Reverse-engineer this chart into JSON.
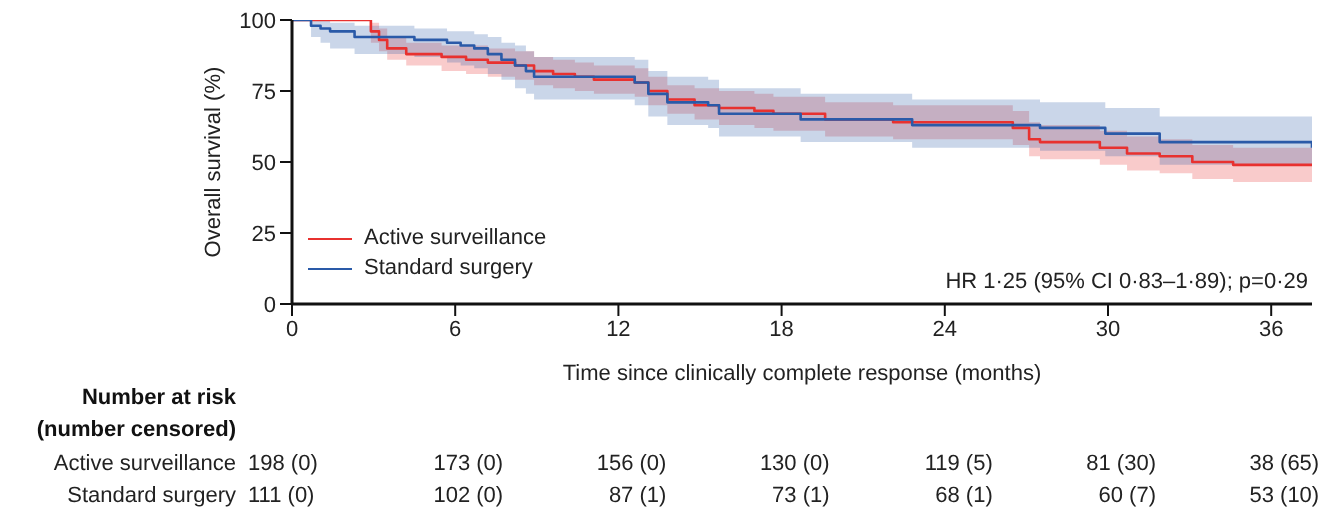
{
  "chart_data": {
    "type": "step",
    "xlabel": "Time since clinically complete response (months)",
    "ylabel": "Overall survival (%)",
    "xlim": [
      0,
      37.5
    ],
    "xticks": [
      0,
      6,
      12,
      18,
      24,
      30,
      36
    ],
    "ylim": [
      0,
      100
    ],
    "yticks": [
      0,
      25,
      50,
      75,
      100
    ],
    "legend": "bottom left",
    "line_style": "solid",
    "series": [
      {
        "name": "Active surveillance",
        "color": "#e8312f",
        "x": [
          0,
          2.9,
          3.2,
          3.5,
          4.2,
          5.5,
          6.4,
          7.2,
          8.2,
          8.9,
          9.6,
          10.4,
          11.1,
          12.6,
          13.1,
          13.8,
          14.8,
          15.7,
          17.0,
          17.7,
          19.6,
          22.1,
          26.5,
          27.1,
          27.5,
          29.7,
          30.7,
          31.9,
          33.1,
          34.6,
          37.5
        ],
        "values": [
          100,
          96,
          93,
          90,
          88,
          87,
          86,
          85,
          84,
          82,
          81,
          80,
          79,
          78,
          75,
          72,
          70,
          69,
          68,
          67,
          65,
          64,
          62,
          58,
          57,
          55,
          53,
          52,
          50,
          49,
          49
        ],
        "lower": [
          100,
          92,
          89,
          86,
          84,
          82,
          81,
          80,
          79,
          77,
          76,
          75,
          74,
          73,
          70,
          67,
          65,
          63,
          62,
          61,
          59,
          58,
          56,
          52,
          51,
          49,
          47,
          46,
          44,
          43,
          43
        ],
        "upper": [
          100,
          99,
          97,
          94,
          92,
          91,
          91,
          90,
          89,
          87,
          86,
          85,
          84,
          83,
          80,
          77,
          76,
          75,
          74,
          73,
          71,
          70,
          68,
          64,
          63,
          61,
          59,
          58,
          56,
          55,
          55
        ]
      },
      {
        "name": "Standard surgery",
        "color": "#2a5aa8",
        "x": [
          0,
          0.7,
          1.05,
          1.4,
          2.3,
          4.5,
          5.7,
          6.2,
          6.7,
          7.2,
          7.7,
          8.2,
          8.6,
          8.9,
          12.6,
          13.1,
          13.8,
          15.3,
          15.7,
          18.7,
          22.8,
          27.5,
          29.9,
          31.9,
          37.5
        ],
        "values": [
          100,
          98,
          97,
          96,
          94,
          93,
          92,
          91,
          90,
          88,
          86,
          84,
          82,
          80,
          78,
          74,
          71,
          70,
          67,
          65,
          63,
          62,
          60,
          57,
          55
        ],
        "lower": [
          100,
          94,
          92,
          90,
          88,
          87,
          85,
          84,
          83,
          81,
          79,
          76,
          74,
          72,
          70,
          66,
          63,
          62,
          59,
          57,
          55,
          54,
          52,
          49,
          47
        ],
        "upper": [
          100,
          100,
          100,
          99,
          98,
          97,
          96,
          96,
          95,
          94,
          92,
          91,
          89,
          87,
          86,
          82,
          80,
          79,
          76,
          74,
          72,
          71,
          69,
          66,
          64
        ]
      }
    ],
    "annotations": [
      "HR 1·25 (95% CI 0·83–1·89); p=0·29",
      "Number at risk",
      "(number censored)",
      "Active surveillance",
      "198 (0)",
      "173 (0)",
      "156 (0)",
      "130 (0)",
      "119 (5)",
      "81 (30)",
      "38 (65)",
      "Standard surgery",
      "111 (0)",
      "102 (0)",
      "87 (1)",
      "73 (1)",
      "68 (1)",
      "60 (7)",
      "53 (10)"
    ]
  }
}
